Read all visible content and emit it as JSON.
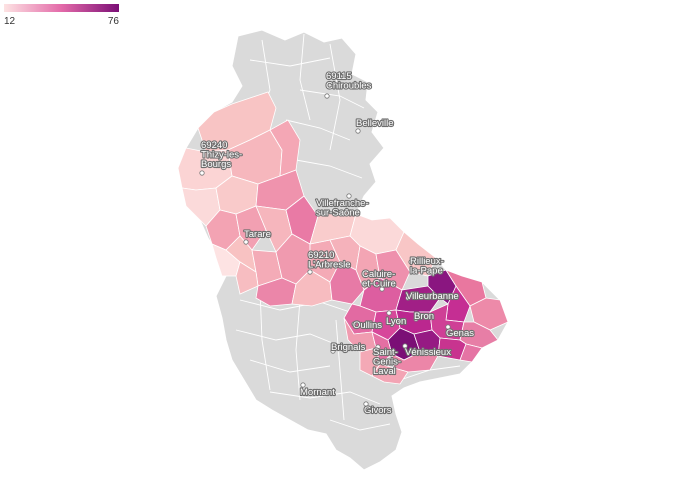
{
  "legend": {
    "min_label": "12",
    "max_label": "76",
    "color_low": "#fde3e3",
    "color_high": "#7b0f76"
  },
  "colors": {
    "no_data": "#dadada",
    "border": "#ffffff"
  },
  "cities": [
    {
      "id": "chiroubles",
      "lines": [
        "69115",
        "Chiroubles"
      ]
    },
    {
      "id": "belleville",
      "lines": [
        "Belleville"
      ]
    },
    {
      "id": "thizy",
      "lines": [
        "69240",
        "Thizy-les-",
        "Bourgs"
      ]
    },
    {
      "id": "villefranche",
      "lines": [
        "Villefranche-",
        "sur-Saône"
      ]
    },
    {
      "id": "tarare",
      "lines": [
        "Tarare"
      ]
    },
    {
      "id": "arbresle",
      "lines": [
        "69210",
        "L'Arbresle"
      ]
    },
    {
      "id": "rillieux",
      "lines": [
        "Rillieux-",
        "la-Pape"
      ]
    },
    {
      "id": "caluire",
      "lines": [
        "Caluire-",
        "et-Cuire"
      ]
    },
    {
      "id": "villeurbanne",
      "lines": [
        "Villeurbanne"
      ]
    },
    {
      "id": "bron",
      "lines": [
        "Bron"
      ]
    },
    {
      "id": "lyon",
      "lines": [
        "Lyon"
      ]
    },
    {
      "id": "oullins",
      "lines": [
        "Oullins"
      ]
    },
    {
      "id": "genas",
      "lines": [
        "Genas"
      ]
    },
    {
      "id": "venissieux",
      "lines": [
        "Vénissieux"
      ]
    },
    {
      "id": "brignais",
      "lines": [
        "Brignais"
      ]
    },
    {
      "id": "saintgenis",
      "lines": [
        "Saint-",
        "Genis-",
        "Laval"
      ]
    },
    {
      "id": "mornant",
      "lines": [
        "Mornant"
      ]
    },
    {
      "id": "givors",
      "lines": [
        "Givors"
      ]
    }
  ]
}
